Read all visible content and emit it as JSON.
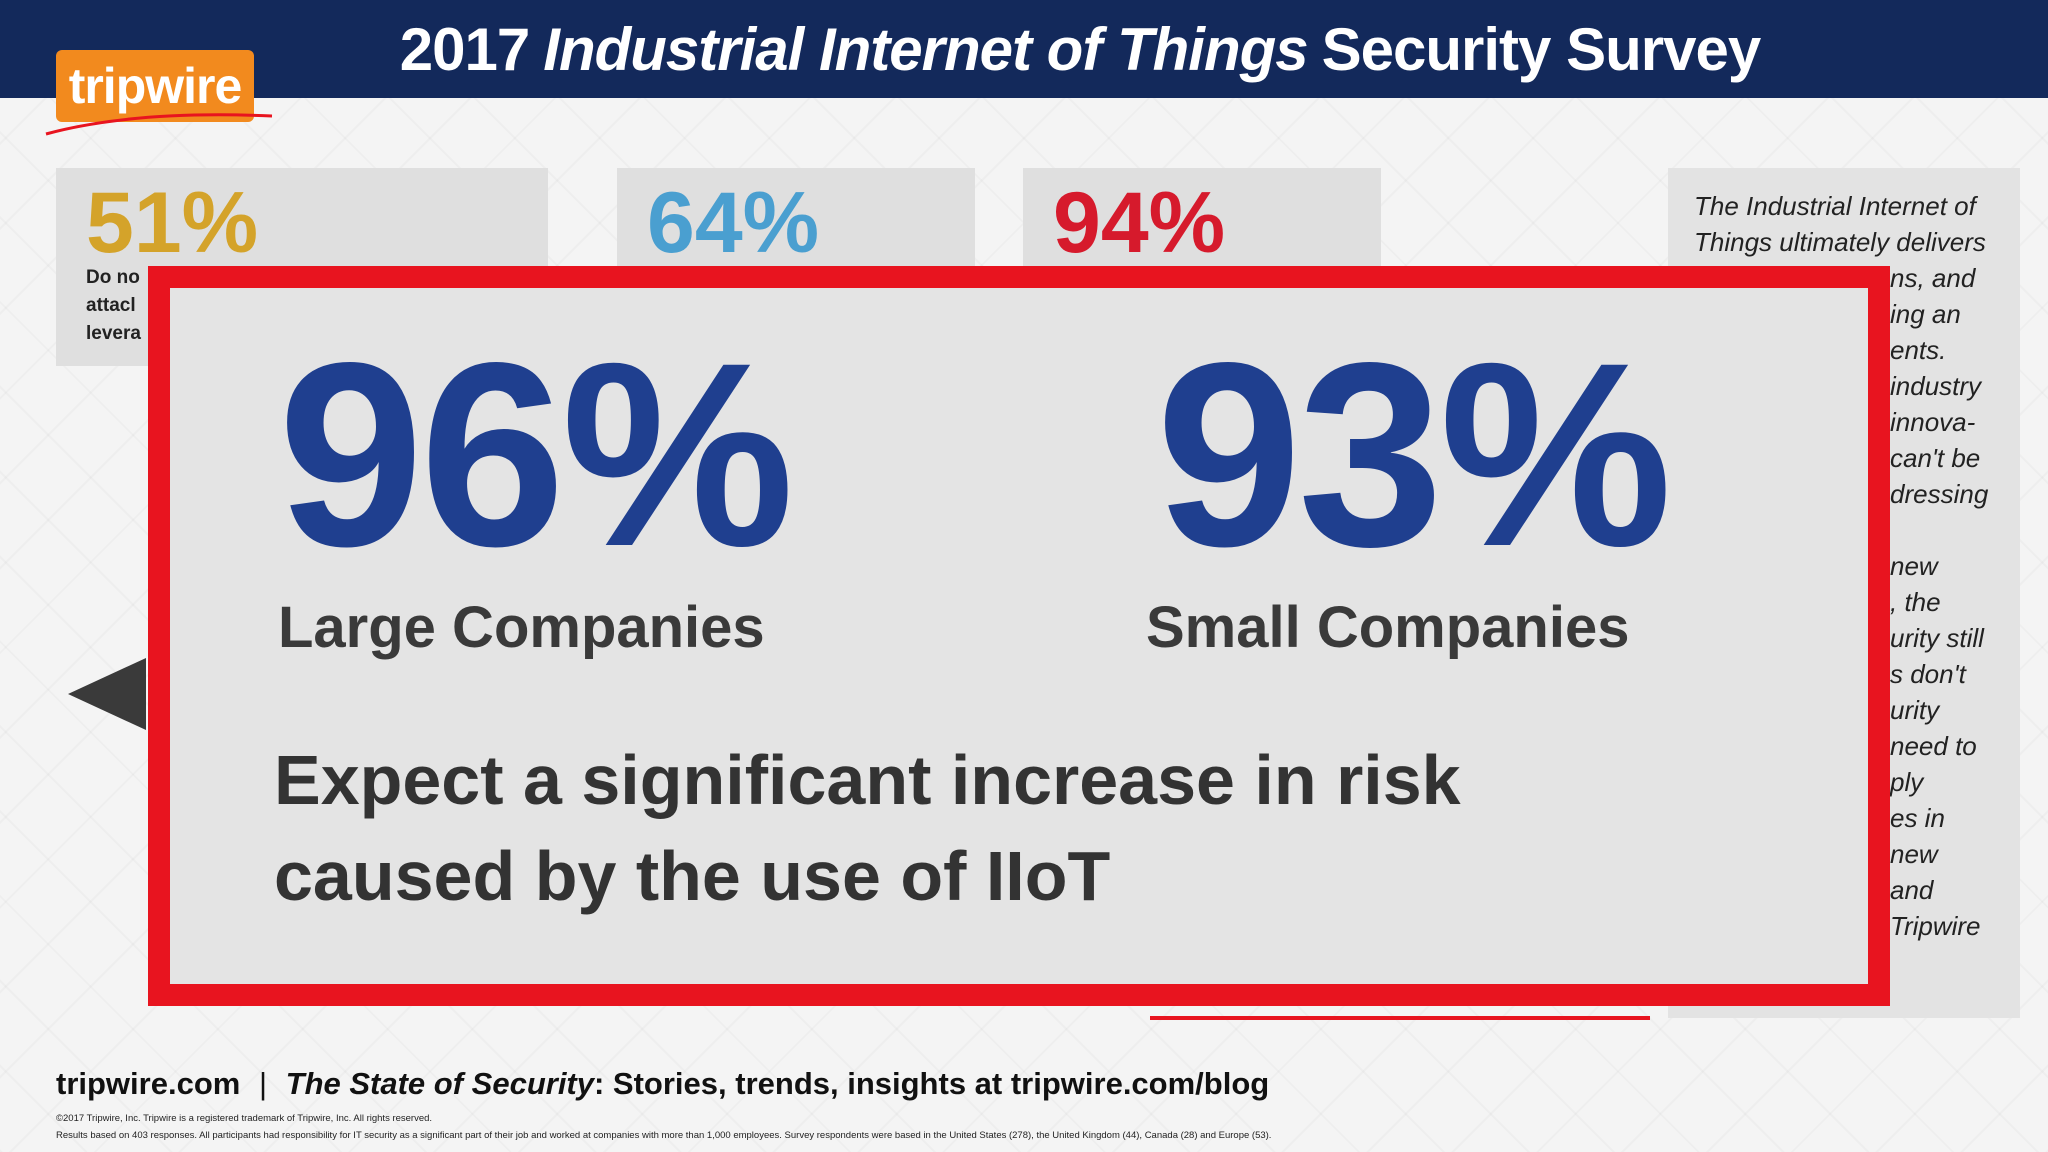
{
  "header": {
    "title_prefix": "2017",
    "title_italic": "Industrial Internet of Things",
    "title_suffix": "Security Survey"
  },
  "logo": {
    "text": "tripwire"
  },
  "cards": [
    {
      "value": "51%",
      "color": "#d4a32a",
      "desc_lines": [
        "Do no",
        "attacl",
        "levera"
      ]
    },
    {
      "value": "64%",
      "color": "#4a9fd0"
    },
    {
      "value": "94%",
      "color": "#d61a2c"
    }
  ],
  "side_panel": {
    "lines": [
      "The Industrial Internet of",
      "Things ultimately delivers",
      "ns, and",
      "ing an",
      "ents.",
      "industry",
      "innova-",
      "can't be",
      "dressing",
      "",
      "new",
      ", the",
      "urity still",
      "s don't",
      "urity",
      "need to",
      "ply",
      "es in new",
      "",
      "and",
      "Tripwire"
    ]
  },
  "callout": {
    "stat1_value": "96%",
    "stat1_label": "Large Companies",
    "stat2_value": "93%",
    "stat2_label": "Small Companies",
    "text_line1": "Expect a significant increase in risk",
    "text_line2": "caused by the use of IIoT",
    "border_color": "#e8141f",
    "number_color": "#1f3f8f"
  },
  "footer": {
    "site": "tripwire.com",
    "separator": "|",
    "italic": "The State of Security",
    "rest": ": Stories, trends, insights at tripwire.com/blog",
    "fine1": "©2017 Tripwire, Inc. Tripwire is a registered trademark of Tripwire, Inc. All rights reserved.",
    "fine2": "Results based on 403 responses. All participants had responsibility for IT security as a significant part of their job and worked at companies with more than 1,000 employees. Survey respondents were based in the United States (278), the United Kingdom (44), Canada (28) and Europe (53)."
  }
}
